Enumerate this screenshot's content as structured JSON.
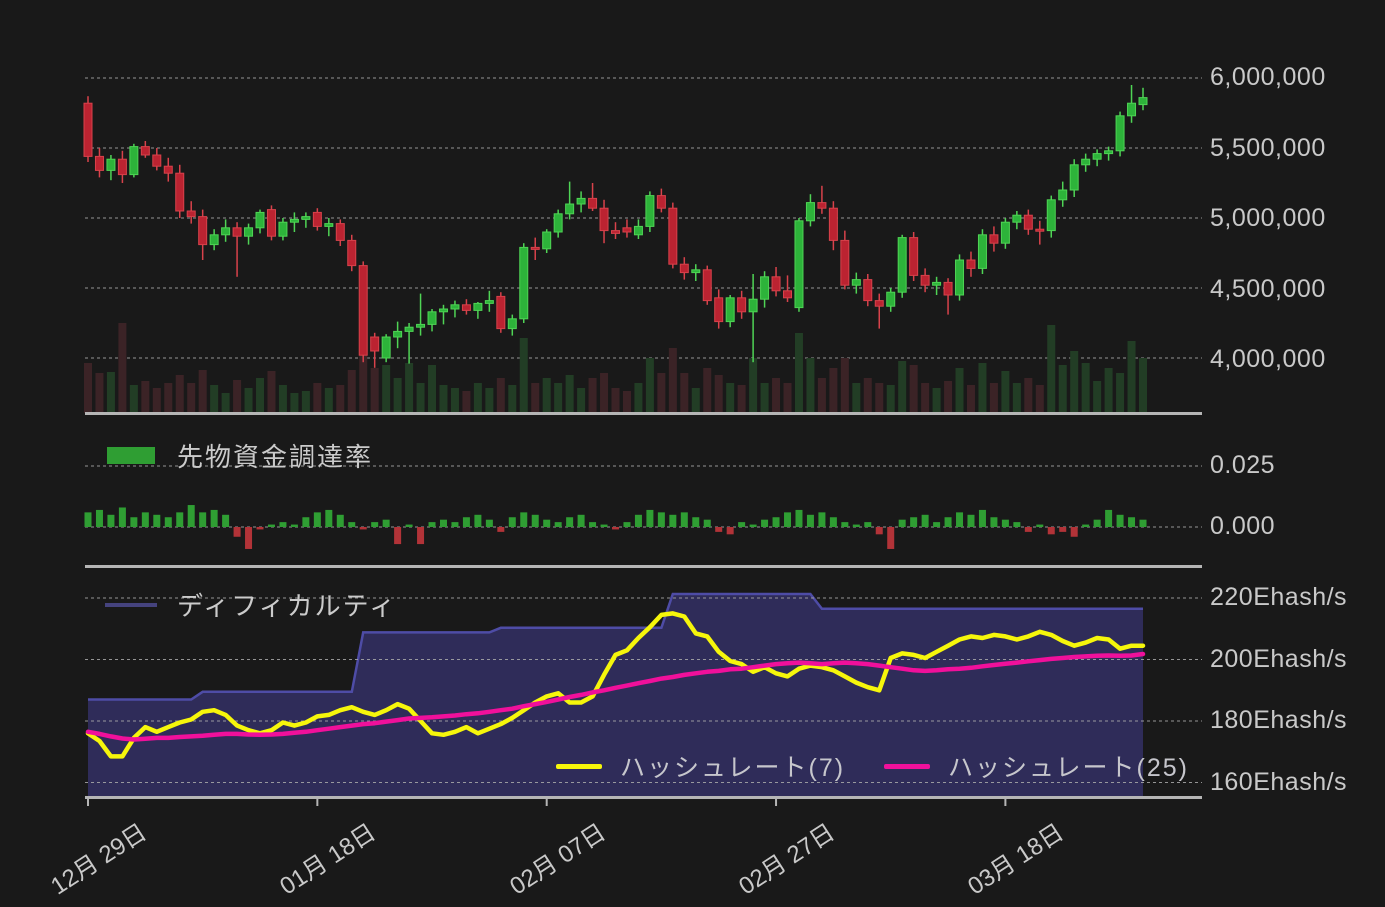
{
  "colors": {
    "background": "#191919",
    "candle_up_fill": "#2db33a",
    "candle_up_edge": "#4fd455",
    "candle_down_fill": "#bb2331",
    "candle_down_edge": "#d8424b",
    "volume_up": "#223d25",
    "volume_down": "#3b2326",
    "funding_up": "#2f9e33",
    "funding_down": "#b23338",
    "difficulty_fill": "#2f2c59",
    "difficulty_edge": "#4e4ca6",
    "hashrate7": "#f6f60b",
    "hashrate25": "#f0109b",
    "grid": "#ababab",
    "axis": "#b5b5b5",
    "text": "#c9c9c9"
  },
  "chart_data": [
    {
      "type": "candlestick",
      "title": "",
      "x_tick_labels": [
        "12月 29日",
        "01月 18日",
        "02月 07日",
        "02月 27日",
        "03月 18日"
      ],
      "x_tick_indices": [
        0,
        20,
        40,
        60,
        80
      ],
      "x_count": 93,
      "y_ticks": [
        6000000,
        5500000,
        5000000,
        4500000,
        4000000
      ],
      "y_tick_labels": [
        "6,000,000",
        "5,500,000",
        "5,000,000",
        "4,500,000",
        "4,000,000"
      ],
      "ohlc_millions": [
        [
          5.82,
          5.87,
          5.4,
          5.44
        ],
        [
          5.44,
          5.5,
          5.29,
          5.34
        ],
        [
          5.34,
          5.45,
          5.27,
          5.42
        ],
        [
          5.42,
          5.48,
          5.25,
          5.31
        ],
        [
          5.31,
          5.53,
          5.29,
          5.51
        ],
        [
          5.51,
          5.55,
          5.43,
          5.45
        ],
        [
          5.45,
          5.5,
          5.34,
          5.37
        ],
        [
          5.37,
          5.43,
          5.26,
          5.32
        ],
        [
          5.32,
          5.38,
          5.0,
          5.05
        ],
        [
          5.05,
          5.12,
          4.96,
          5.01
        ],
        [
          5.01,
          5.06,
          4.7,
          4.81
        ],
        [
          4.81,
          4.92,
          4.77,
          4.88
        ],
        [
          4.88,
          4.99,
          4.83,
          4.93
        ],
        [
          4.93,
          4.97,
          4.58,
          4.87
        ],
        [
          4.87,
          4.96,
          4.81,
          4.93
        ],
        [
          4.93,
          5.06,
          4.89,
          5.04
        ],
        [
          5.06,
          5.09,
          4.84,
          4.87
        ],
        [
          4.87,
          5.0,
          4.84,
          4.97
        ],
        [
          4.97,
          5.04,
          4.9,
          4.99
        ],
        [
          4.99,
          5.04,
          4.93,
          5.01
        ],
        [
          5.04,
          5.07,
          4.91,
          4.94
        ],
        [
          4.94,
          5.0,
          4.87,
          4.96
        ],
        [
          4.96,
          4.99,
          4.8,
          4.84
        ],
        [
          4.84,
          4.88,
          4.62,
          4.66
        ],
        [
          4.66,
          4.69,
          3.97,
          4.02
        ],
        [
          4.15,
          4.18,
          3.93,
          4.05
        ],
        [
          4.0,
          4.17,
          3.97,
          4.15
        ],
        [
          4.15,
          4.26,
          4.07,
          4.19
        ],
        [
          4.19,
          4.25,
          3.96,
          4.22
        ],
        [
          4.22,
          4.46,
          4.16,
          4.24
        ],
        [
          4.24,
          4.35,
          4.19,
          4.33
        ],
        [
          4.33,
          4.38,
          4.24,
          4.35
        ],
        [
          4.35,
          4.41,
          4.29,
          4.38
        ],
        [
          4.38,
          4.42,
          4.31,
          4.34
        ],
        [
          4.34,
          4.4,
          4.28,
          4.39
        ],
        [
          4.39,
          4.48,
          4.33,
          4.41
        ],
        [
          4.44,
          4.47,
          4.18,
          4.21
        ],
        [
          4.21,
          4.31,
          4.16,
          4.28
        ],
        [
          4.28,
          4.82,
          4.25,
          4.79
        ],
        [
          4.79,
          4.86,
          4.7,
          4.78
        ],
        [
          4.78,
          4.92,
          4.75,
          4.9
        ],
        [
          4.9,
          5.06,
          4.86,
          5.03
        ],
        [
          5.03,
          5.26,
          4.99,
          5.1
        ],
        [
          5.1,
          5.19,
          5.04,
          5.14
        ],
        [
          5.14,
          5.25,
          5.05,
          5.07
        ],
        [
          5.07,
          5.13,
          4.82,
          4.91
        ],
        [
          4.91,
          4.97,
          4.85,
          4.89
        ],
        [
          4.93,
          4.99,
          4.86,
          4.9
        ],
        [
          4.88,
          4.99,
          4.85,
          4.94
        ],
        [
          4.94,
          5.19,
          4.9,
          5.16
        ],
        [
          5.16,
          5.21,
          5.04,
          5.07
        ],
        [
          5.07,
          5.11,
          4.64,
          4.67
        ],
        [
          4.67,
          4.72,
          4.56,
          4.61
        ],
        [
          4.61,
          4.67,
          4.55,
          4.63
        ],
        [
          4.63,
          4.66,
          4.38,
          4.41
        ],
        [
          4.43,
          4.49,
          4.21,
          4.26
        ],
        [
          4.26,
          4.45,
          4.22,
          4.43
        ],
        [
          4.43,
          4.48,
          4.28,
          4.33
        ],
        [
          4.33,
          4.6,
          3.97,
          4.42
        ],
        [
          4.42,
          4.62,
          4.36,
          4.58
        ],
        [
          4.58,
          4.65,
          4.44,
          4.48
        ],
        [
          4.48,
          4.59,
          4.4,
          4.43
        ],
        [
          4.36,
          5.0,
          4.33,
          4.98
        ],
        [
          4.98,
          5.17,
          4.94,
          5.11
        ],
        [
          5.11,
          5.23,
          5.03,
          5.07
        ],
        [
          5.07,
          5.12,
          4.77,
          4.84
        ],
        [
          4.84,
          4.91,
          4.49,
          4.52
        ],
        [
          4.52,
          4.61,
          4.46,
          4.56
        ],
        [
          4.56,
          4.6,
          4.37,
          4.41
        ],
        [
          4.41,
          4.46,
          4.21,
          4.37
        ],
        [
          4.37,
          4.5,
          4.33,
          4.47
        ],
        [
          4.47,
          4.88,
          4.43,
          4.86
        ],
        [
          4.86,
          4.9,
          4.55,
          4.59
        ],
        [
          4.59,
          4.64,
          4.47,
          4.52
        ],
        [
          4.52,
          4.58,
          4.45,
          4.54
        ],
        [
          4.54,
          4.57,
          4.31,
          4.45
        ],
        [
          4.45,
          4.74,
          4.41,
          4.7
        ],
        [
          4.7,
          4.76,
          4.58,
          4.64
        ],
        [
          4.64,
          4.92,
          4.6,
          4.88
        ],
        [
          4.88,
          4.94,
          4.76,
          4.82
        ],
        [
          4.82,
          5.0,
          4.78,
          4.97
        ],
        [
          4.97,
          5.05,
          4.92,
          5.02
        ],
        [
          5.02,
          5.06,
          4.88,
          4.92
        ],
        [
          4.92,
          4.98,
          4.81,
          4.91
        ],
        [
          4.91,
          5.16,
          4.86,
          5.13
        ],
        [
          5.13,
          5.26,
          5.08,
          5.2
        ],
        [
          5.2,
          5.42,
          5.15,
          5.38
        ],
        [
          5.38,
          5.46,
          5.33,
          5.42
        ],
        [
          5.42,
          5.49,
          5.37,
          5.46
        ],
        [
          5.46,
          5.51,
          5.41,
          5.48
        ],
        [
          5.48,
          5.76,
          5.44,
          5.73
        ],
        [
          5.73,
          5.95,
          5.68,
          5.82
        ],
        [
          5.81,
          5.93,
          5.77,
          5.86
        ]
      ],
      "volumes_rel": [
        50,
        40,
        41,
        90,
        28,
        32,
        25,
        30,
        38,
        30,
        43,
        28,
        20,
        33,
        25,
        35,
        42,
        28,
        20,
        22,
        30,
        25,
        28,
        43,
        85,
        45,
        48,
        35,
        50,
        30,
        48,
        28,
        25,
        22,
        30,
        25,
        35,
        28,
        75,
        30,
        35,
        30,
        38,
        25,
        35,
        40,
        25,
        22,
        30,
        55,
        40,
        65,
        40,
        25,
        45,
        38,
        30,
        28,
        55,
        30,
        35,
        30,
        80,
        55,
        35,
        45,
        55,
        30,
        35,
        30,
        28,
        52,
        48,
        30,
        25,
        32,
        45,
        28,
        50,
        30,
        42,
        30,
        35,
        28,
        88,
        48,
        62,
        50,
        32,
        45,
        40,
        72,
        55
      ]
    },
    {
      "type": "bar",
      "name": "先物資金調達率",
      "y_ticks": [
        0.025,
        0.0
      ],
      "y_tick_labels": [
        "0.025",
        "0.000"
      ],
      "values": [
        0.006,
        0.007,
        0.005,
        0.008,
        0.004,
        0.006,
        0.005,
        0.004,
        0.006,
        0.009,
        0.006,
        0.007,
        0.005,
        -0.004,
        -0.009,
        -0.001,
        0.001,
        0.002,
        0.001,
        0.004,
        0.006,
        0.007,
        0.005,
        0.002,
        -0.001,
        0.002,
        0.003,
        -0.007,
        0.001,
        -0.007,
        0.002,
        0.003,
        0.002,
        0.004,
        0.005,
        0.003,
        -0.002,
        0.004,
        0.006,
        0.005,
        0.003,
        0.002,
        0.004,
        0.005,
        0.002,
        0.001,
        -0.001,
        0.002,
        0.005,
        0.007,
        0.006,
        0.005,
        0.006,
        0.004,
        0.003,
        -0.002,
        -0.003,
        0.002,
        0.001,
        0.003,
        0.004,
        0.006,
        0.007,
        0.005,
        0.006,
        0.004,
        0.002,
        0.001,
        0.002,
        -0.003,
        -0.009,
        0.003,
        0.004,
        0.005,
        0.002,
        0.004,
        0.006,
        0.005,
        0.007,
        0.004,
        0.003,
        0.002,
        -0.002,
        0.001,
        -0.003,
        -0.002,
        -0.004,
        0.001,
        0.003,
        0.007,
        0.005,
        0.004,
        0.003
      ]
    },
    {
      "type": "area+line",
      "y_range": [
        160,
        220
      ],
      "y_tick_labels": [
        "220Ehash/s",
        "200Ehash/s",
        "180Ehash/s",
        "160Ehash/s"
      ],
      "y_ticks": [
        220,
        200,
        180,
        160
      ],
      "area_series": {
        "name": "ディフィカルティ",
        "values": [
          187,
          187,
          187,
          187,
          187,
          187,
          187,
          187,
          187,
          187,
          189.5,
          189.5,
          189.5,
          189.5,
          189.5,
          189.5,
          189.5,
          189.5,
          189.5,
          189.5,
          189.5,
          189.5,
          189.5,
          189.5,
          208.8,
          208.8,
          208.8,
          208.8,
          208.8,
          208.8,
          208.8,
          208.8,
          208.8,
          208.8,
          208.8,
          208.8,
          210.3,
          210.3,
          210.3,
          210.3,
          210.3,
          210.3,
          210.3,
          210.3,
          210.3,
          210.3,
          210.3,
          210.3,
          210.3,
          210.3,
          210.3,
          221.3,
          221.3,
          221.3,
          221.3,
          221.3,
          221.3,
          221.3,
          221.3,
          221.3,
          221.3,
          221.3,
          221.3,
          221.3,
          216.5,
          216.5,
          216.5,
          216.5,
          216.5,
          216.5,
          216.5,
          216.5,
          216.5,
          216.5,
          216.5,
          216.5,
          216.5,
          216.5,
          216.5,
          216.5,
          216.5,
          216.5,
          216.5,
          216.5,
          216.5,
          216.5,
          216.5,
          216.5,
          216.5,
          216.5,
          216.5,
          216.5,
          216.5
        ]
      },
      "line_series": [
        {
          "name": "ハッシュレート(7)",
          "values": [
            176,
            173.5,
            168.5,
            168.5,
            174.5,
            178,
            176.5,
            178,
            179.5,
            180.5,
            183,
            183.5,
            182,
            178.5,
            177,
            176,
            177,
            179.5,
            178.5,
            179.5,
            181.5,
            182,
            183.5,
            184.5,
            183,
            182,
            183.5,
            185.5,
            184,
            180,
            176,
            175.5,
            176.5,
            178,
            176,
            177.5,
            179,
            181,
            183.5,
            186,
            188,
            189,
            186,
            186,
            188,
            195,
            201.5,
            203,
            207,
            210.5,
            214.5,
            215,
            214,
            208.5,
            207.5,
            202.5,
            199.5,
            198.5,
            196,
            197.5,
            195.5,
            194.5,
            197,
            198,
            197.5,
            196.5,
            194.5,
            192.5,
            191,
            190,
            200.5,
            202,
            201.5,
            200.5,
            202.5,
            204.5,
            206.5,
            207.5,
            207,
            208,
            207.5,
            206.5,
            207.5,
            209,
            208,
            206,
            204.5,
            205.5,
            207,
            206.5,
            203.5,
            204.5,
            204.5
          ]
        },
        {
          "name": "ハッシュレート(25)",
          "values": [
            176.5,
            175.8,
            175,
            174.3,
            174,
            174.2,
            174.5,
            174.5,
            174.8,
            175,
            175.2,
            175.5,
            175.8,
            175.8,
            175.6,
            175.5,
            175.6,
            175.8,
            176.2,
            176.5,
            177,
            177.5,
            178,
            178.5,
            179,
            179.3,
            179.8,
            180.3,
            180.8,
            181,
            181.2,
            181.5,
            181.8,
            182.2,
            182.5,
            183,
            183.5,
            184,
            184.8,
            185.5,
            186.2,
            187,
            187.8,
            188.5,
            189.3,
            190,
            190.8,
            191.5,
            192.3,
            193,
            193.8,
            194.3,
            195,
            195.5,
            196,
            196.3,
            196.8,
            197,
            197.5,
            198,
            198.5,
            198.8,
            199,
            198.8,
            198.5,
            198.8,
            199,
            198.8,
            198.5,
            198,
            197.5,
            197,
            196.5,
            196.3,
            196.5,
            196.8,
            197,
            197.3,
            197.8,
            198.2,
            198.6,
            199,
            199.4,
            199.8,
            200.2,
            200.5,
            200.8,
            201,
            201.2,
            201.3,
            201.2,
            201.3,
            201.8
          ]
        }
      ]
    }
  ]
}
